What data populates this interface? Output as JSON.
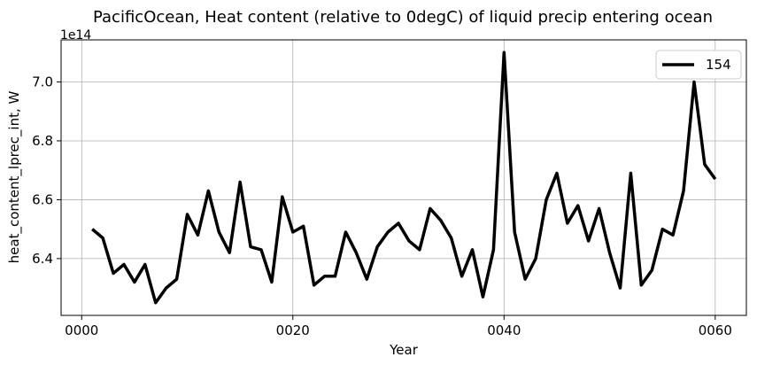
{
  "chart_data": {
    "type": "line",
    "title": "PacificOcean, Heat content (relative to 0degC) of liquid precip entering ocean",
    "xlabel": "Year",
    "ylabel": "heat_content_lprec_int, W",
    "y_offset_label": "1e14",
    "xlim": [
      -1.95,
      62.95
    ],
    "ylim": [
      6.207,
      7.143
    ],
    "x_ticks": [
      0,
      20,
      40,
      60
    ],
    "x_tick_labels": [
      "0000",
      "0020",
      "0040",
      "0060"
    ],
    "y_ticks": [
      6.4,
      6.6,
      6.8,
      7.0
    ],
    "y_tick_labels": [
      "6.4",
      "6.6",
      "6.8",
      "7.0"
    ],
    "grid": true,
    "legend_position": "top-right",
    "series": [
      {
        "name": "154",
        "color": "#000000",
        "x": [
          1,
          2,
          3,
          4,
          5,
          6,
          7,
          8,
          9,
          10,
          11,
          12,
          13,
          14,
          15,
          16,
          17,
          18,
          19,
          20,
          21,
          22,
          23,
          24,
          25,
          26,
          27,
          28,
          29,
          30,
          31,
          32,
          33,
          34,
          35,
          36,
          37,
          38,
          39,
          40,
          41,
          42,
          43,
          44,
          45,
          46,
          47,
          48,
          49,
          50,
          51,
          52,
          53,
          54,
          55,
          56,
          57,
          58,
          59,
          60
        ],
        "values": [
          6.5,
          6.47,
          6.35,
          6.38,
          6.32,
          6.38,
          6.25,
          6.3,
          6.33,
          6.55,
          6.48,
          6.63,
          6.49,
          6.42,
          6.66,
          6.44,
          6.43,
          6.32,
          6.61,
          6.49,
          6.51,
          6.31,
          6.34,
          6.34,
          6.49,
          6.42,
          6.33,
          6.44,
          6.49,
          6.52,
          6.46,
          6.43,
          6.57,
          6.53,
          6.47,
          6.34,
          6.43,
          6.27,
          6.43,
          7.1,
          6.49,
          6.33,
          6.4,
          6.6,
          6.69,
          6.52,
          6.58,
          6.46,
          6.57,
          6.42,
          6.3,
          6.69,
          6.31,
          6.36,
          6.5,
          6.48,
          6.63,
          7.0,
          6.72,
          6.67
        ]
      }
    ]
  }
}
